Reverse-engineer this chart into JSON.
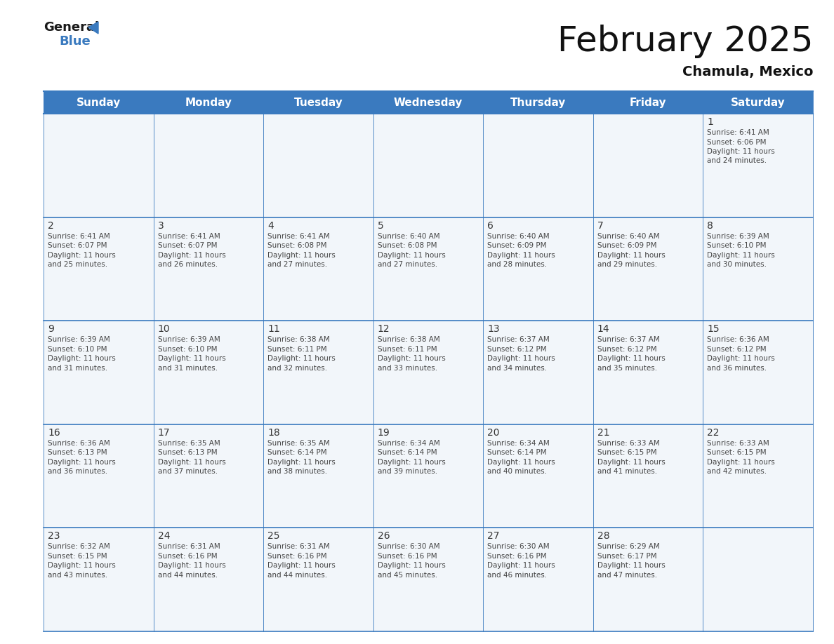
{
  "title": "February 2025",
  "subtitle": "Chamula, Mexico",
  "header_bg_color": "#3a7abf",
  "header_text_color": "#ffffff",
  "cell_bg_even": "#f0f4f8",
  "cell_bg_odd": "#f0f4f8",
  "border_color": "#3a7abf",
  "day_number_color": "#333333",
  "day_text_color": "#444444",
  "days_of_week": [
    "Sunday",
    "Monday",
    "Tuesday",
    "Wednesday",
    "Thursday",
    "Friday",
    "Saturday"
  ],
  "calendar": [
    [
      null,
      null,
      null,
      null,
      null,
      null,
      {
        "day": "1",
        "sunrise": "6:41 AM",
        "sunset": "6:06 PM",
        "daylight": "11 hours\nand 24 minutes."
      }
    ],
    [
      {
        "day": "2",
        "sunrise": "6:41 AM",
        "sunset": "6:07 PM",
        "daylight": "11 hours\nand 25 minutes."
      },
      {
        "day": "3",
        "sunrise": "6:41 AM",
        "sunset": "6:07 PM",
        "daylight": "11 hours\nand 26 minutes."
      },
      {
        "day": "4",
        "sunrise": "6:41 AM",
        "sunset": "6:08 PM",
        "daylight": "11 hours\nand 27 minutes."
      },
      {
        "day": "5",
        "sunrise": "6:40 AM",
        "sunset": "6:08 PM",
        "daylight": "11 hours\nand 27 minutes."
      },
      {
        "day": "6",
        "sunrise": "6:40 AM",
        "sunset": "6:09 PM",
        "daylight": "11 hours\nand 28 minutes."
      },
      {
        "day": "7",
        "sunrise": "6:40 AM",
        "sunset": "6:09 PM",
        "daylight": "11 hours\nand 29 minutes."
      },
      {
        "day": "8",
        "sunrise": "6:39 AM",
        "sunset": "6:10 PM",
        "daylight": "11 hours\nand 30 minutes."
      }
    ],
    [
      {
        "day": "9",
        "sunrise": "6:39 AM",
        "sunset": "6:10 PM",
        "daylight": "11 hours\nand 31 minutes."
      },
      {
        "day": "10",
        "sunrise": "6:39 AM",
        "sunset": "6:10 PM",
        "daylight": "11 hours\nand 31 minutes."
      },
      {
        "day": "11",
        "sunrise": "6:38 AM",
        "sunset": "6:11 PM",
        "daylight": "11 hours\nand 32 minutes."
      },
      {
        "day": "12",
        "sunrise": "6:38 AM",
        "sunset": "6:11 PM",
        "daylight": "11 hours\nand 33 minutes."
      },
      {
        "day": "13",
        "sunrise": "6:37 AM",
        "sunset": "6:12 PM",
        "daylight": "11 hours\nand 34 minutes."
      },
      {
        "day": "14",
        "sunrise": "6:37 AM",
        "sunset": "6:12 PM",
        "daylight": "11 hours\nand 35 minutes."
      },
      {
        "day": "15",
        "sunrise": "6:36 AM",
        "sunset": "6:12 PM",
        "daylight": "11 hours\nand 36 minutes."
      }
    ],
    [
      {
        "day": "16",
        "sunrise": "6:36 AM",
        "sunset": "6:13 PM",
        "daylight": "11 hours\nand 36 minutes."
      },
      {
        "day": "17",
        "sunrise": "6:35 AM",
        "sunset": "6:13 PM",
        "daylight": "11 hours\nand 37 minutes."
      },
      {
        "day": "18",
        "sunrise": "6:35 AM",
        "sunset": "6:14 PM",
        "daylight": "11 hours\nand 38 minutes."
      },
      {
        "day": "19",
        "sunrise": "6:34 AM",
        "sunset": "6:14 PM",
        "daylight": "11 hours\nand 39 minutes."
      },
      {
        "day": "20",
        "sunrise": "6:34 AM",
        "sunset": "6:14 PM",
        "daylight": "11 hours\nand 40 minutes."
      },
      {
        "day": "21",
        "sunrise": "6:33 AM",
        "sunset": "6:15 PM",
        "daylight": "11 hours\nand 41 minutes."
      },
      {
        "day": "22",
        "sunrise": "6:33 AM",
        "sunset": "6:15 PM",
        "daylight": "11 hours\nand 42 minutes."
      }
    ],
    [
      {
        "day": "23",
        "sunrise": "6:32 AM",
        "sunset": "6:15 PM",
        "daylight": "11 hours\nand 43 minutes."
      },
      {
        "day": "24",
        "sunrise": "6:31 AM",
        "sunset": "6:16 PM",
        "daylight": "11 hours\nand 44 minutes."
      },
      {
        "day": "25",
        "sunrise": "6:31 AM",
        "sunset": "6:16 PM",
        "daylight": "11 hours\nand 44 minutes."
      },
      {
        "day": "26",
        "sunrise": "6:30 AM",
        "sunset": "6:16 PM",
        "daylight": "11 hours\nand 45 minutes."
      },
      {
        "day": "27",
        "sunrise": "6:30 AM",
        "sunset": "6:16 PM",
        "daylight": "11 hours\nand 46 minutes."
      },
      {
        "day": "28",
        "sunrise": "6:29 AM",
        "sunset": "6:17 PM",
        "daylight": "11 hours\nand 47 minutes."
      },
      null
    ]
  ],
  "logo_general_color": "#1a1a1a",
  "logo_blue_color": "#3a7abf",
  "title_fontsize": 36,
  "subtitle_fontsize": 14,
  "header_fontsize": 11,
  "day_num_fontsize": 10,
  "cell_text_fontsize": 7.5
}
